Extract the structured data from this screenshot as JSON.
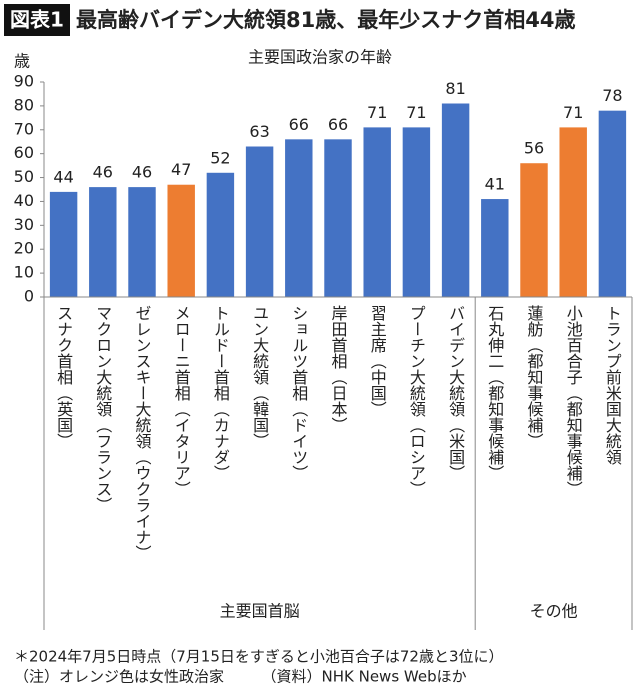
{
  "chart_data": {
    "type": "bar",
    "figure_label": "図表1",
    "title": "最高齢バイデン大統領81歳、最年少スナク首相44歳",
    "subtitle": "主要国政治家の年齢",
    "y_label": "歳",
    "categories": [
      "スナク首相（英国）",
      "マクロン大統領（フランス）",
      "ゼレンスキー大統領（ウクライナ）",
      "メローニ首相（イタリア）",
      "トルドー首相（カナダ）",
      "ユン大統領（韓国）",
      "ショルツ首相（ドイツ）",
      "岸田首相（日本）",
      "習主席（中国）",
      "プーチン大統領（ロシア）",
      "バイデン大統領（米国）",
      "石丸伸二（都知事候補）",
      "蓮舫（都知事候補）",
      "小池百合子（都知事候補）",
      "トランプ前米国大統領"
    ],
    "values": [
      44,
      46,
      46,
      47,
      52,
      63,
      66,
      66,
      71,
      71,
      81,
      41,
      56,
      71,
      78
    ],
    "colors": [
      "#4472c4",
      "#4472c4",
      "#4472c4",
      "#ed7d31",
      "#4472c4",
      "#4472c4",
      "#4472c4",
      "#4472c4",
      "#4472c4",
      "#4472c4",
      "#4472c4",
      "#4472c4",
      "#ed7d31",
      "#ed7d31",
      "#4472c4"
    ],
    "groups": [
      "主要国首脳",
      "その他"
    ],
    "ylim": [
      0,
      90
    ],
    "yticks": [
      0,
      10,
      20,
      30,
      40,
      50,
      60,
      70,
      80,
      90
    ],
    "grid": false,
    "notes": [
      "＊2024年7月5日時点（7月15日をすぎると小池百合子は72歳と3位に）",
      "（注）オレンジ色は女性政治家　　　（資料）NHK News Webほか"
    ]
  }
}
